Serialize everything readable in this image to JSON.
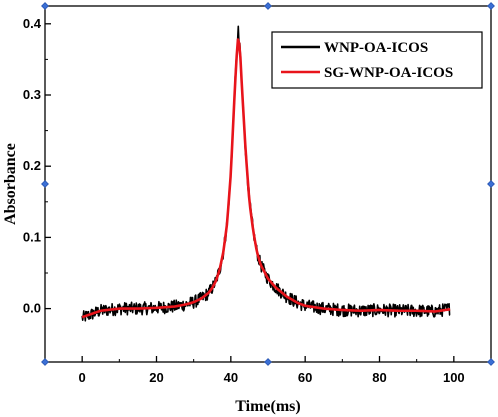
{
  "chart_data": {
    "type": "line",
    "xlabel": "Time(ms)",
    "ylabel": "Absorbance",
    "xlim": [
      -10,
      110
    ],
    "ylim": [
      -0.075,
      0.425
    ],
    "xticks": [
      "0",
      "20",
      "40",
      "60",
      "80",
      "100"
    ],
    "yticks": [
      "0.0",
      "0.1",
      "0.2",
      "0.3",
      "0.4"
    ],
    "legend_position": "top-right",
    "grid": false,
    "series": [
      {
        "name": "WNP-OA-ICOS",
        "color": "#000000",
        "x": [
          0,
          5,
          10,
          15,
          20,
          25,
          28,
          30,
          32,
          34,
          35,
          36,
          37,
          38,
          39,
          40,
          41,
          41.5,
          42,
          42.5,
          43,
          44,
          45,
          46,
          47,
          48,
          50,
          52,
          55,
          58,
          60,
          65,
          70,
          75,
          80,
          85,
          90,
          95,
          99
        ],
        "y": [
          -0.013,
          -0.003,
          0.0,
          0.0,
          0.001,
          0.003,
          0.006,
          0.009,
          0.014,
          0.022,
          0.029,
          0.039,
          0.055,
          0.08,
          0.12,
          0.19,
          0.3,
          0.35,
          0.389,
          0.36,
          0.31,
          0.22,
          0.15,
          0.11,
          0.08,
          0.062,
          0.042,
          0.03,
          0.017,
          0.008,
          0.004,
          0.0,
          -0.002,
          -0.003,
          -0.002,
          -0.003,
          -0.003,
          -0.004,
          0.0
        ],
        "noise": 0.009
      },
      {
        "name": "SG-WNP-OA-ICOS",
        "color": "#e8141b",
        "x": [
          0,
          5,
          10,
          15,
          20,
          25,
          28,
          30,
          32,
          34,
          35,
          36,
          37,
          38,
          39,
          40,
          41,
          41.5,
          42,
          42.5,
          43,
          44,
          45,
          46,
          47,
          48,
          50,
          52,
          55,
          58,
          60,
          65,
          70,
          75,
          80,
          85,
          90,
          95,
          99
        ],
        "y": [
          -0.012,
          -0.003,
          0.0,
          0.0,
          0.001,
          0.003,
          0.006,
          0.009,
          0.014,
          0.022,
          0.029,
          0.039,
          0.055,
          0.08,
          0.12,
          0.19,
          0.3,
          0.35,
          0.384,
          0.36,
          0.31,
          0.22,
          0.15,
          0.11,
          0.08,
          0.062,
          0.042,
          0.03,
          0.017,
          0.008,
          0.004,
          0.0,
          -0.002,
          -0.003,
          -0.002,
          -0.003,
          -0.003,
          -0.004,
          -0.001
        ],
        "noise": 0.0
      }
    ]
  }
}
